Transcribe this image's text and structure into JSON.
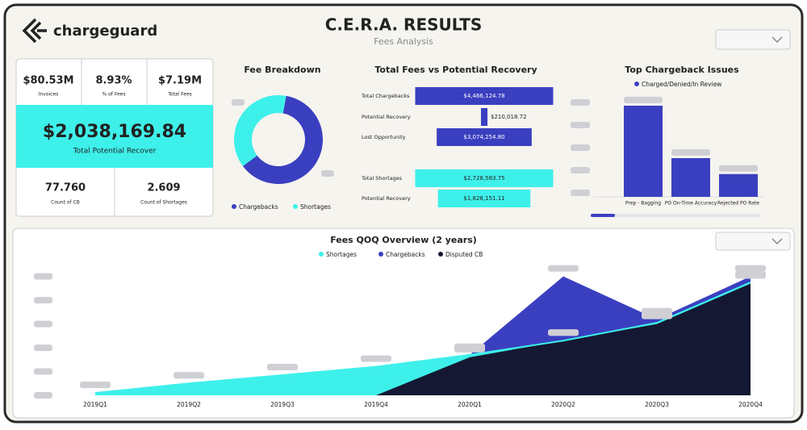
{
  "header": {
    "brand": "chargeguard",
    "title": "C.E.R.A. RESULTS",
    "subtitle": "Fees Analysis"
  },
  "kpis": {
    "top": [
      {
        "value": "$80.53M",
        "label": "Invoices"
      },
      {
        "value": "8.93%",
        "label": "% of Fees"
      },
      {
        "value": "$7.19M",
        "label": "Total Fees"
      }
    ],
    "main": {
      "value": "$2,038,169.84",
      "label": "Total Potential Recover"
    },
    "bottom": [
      {
        "value": "77.760",
        "label": "Count of CB"
      },
      {
        "value": "2.609",
        "label": "Count of Shortages"
      }
    ]
  },
  "fee_breakdown": {
    "type": "pie",
    "title": "Fee Breakdown",
    "categories": [
      "Chargebacks",
      "Shortages"
    ],
    "values": [
      62,
      38
    ],
    "colors": [
      "#3a3fc0",
      "#3ef0ea"
    ]
  },
  "fees_vs_recovery": {
    "type": "bar",
    "title": "Total Fees vs Potential Recovery",
    "groups": [
      {
        "categories": [
          "Total Chargebacks",
          "Potential Recovery",
          "Lost Opportunity"
        ],
        "values": [
          4466124.78,
          210018.72,
          3074254.8
        ],
        "value_labels": [
          "$4,466,124.78",
          "$210,018.72",
          "$3,074,254.80"
        ],
        "color": "#3a3fc0"
      },
      {
        "categories": [
          "Total Shortages",
          "Potential Recovery"
        ],
        "values": [
          2728583.75,
          1828151.11
        ],
        "value_labels": [
          "$2,728,583.75",
          "$1,828,151.11"
        ],
        "color": "#3ef0ea"
      }
    ]
  },
  "top_issues": {
    "type": "bar",
    "title": "Top Chargeback Issues",
    "legend": "Charged/Denied/In Review",
    "categories": [
      "Prep - Bagging",
      "PO On-Time Accuracy",
      "Rejected PO Rate"
    ],
    "values": [
      4,
      1.7,
      1
    ],
    "color": "#3a3fc0",
    "ylim": [
      0,
      4
    ]
  },
  "qoq": {
    "type": "area",
    "title": "Fees QOQ Overview (2 years)",
    "categories": [
      "2019Q1",
      "2019Q2",
      "2019Q3",
      "2019Q4",
      "2020Q1",
      "2020Q2",
      "2020Q3",
      "2020Q4"
    ],
    "series": [
      {
        "name": "Shortages",
        "color": "#3ef0ea",
        "values": [
          0.1,
          0.5,
          0.85,
          1.2,
          1.7,
          2.3,
          3.05,
          4.75
        ]
      },
      {
        "name": "Chargebacks",
        "color": "#3a3fc0",
        "values": [
          0,
          0,
          0,
          0,
          1.7,
          5.0,
          3.2,
          5.0
        ]
      },
      {
        "name": "Disputed CB",
        "color": "#151833",
        "values": [
          null,
          null,
          null,
          0,
          1.6,
          2.3,
          3.0,
          4.7
        ]
      }
    ],
    "ylim": [
      0,
      5.6
    ]
  }
}
